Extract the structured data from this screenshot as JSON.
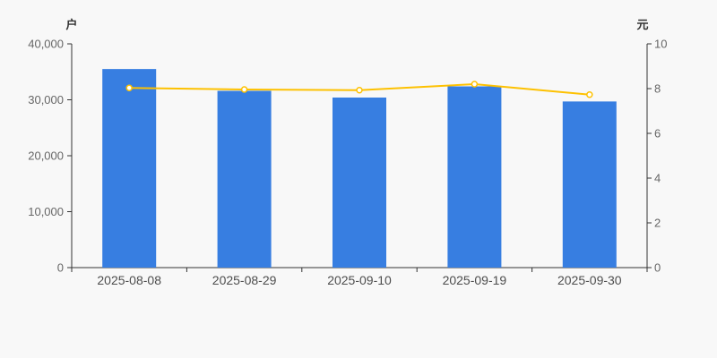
{
  "chart_data": {
    "type": "bar+line",
    "categories": [
      "2025-08-08",
      "2025-08-29",
      "2025-09-10",
      "2025-09-19",
      "2025-09-30"
    ],
    "series": [
      {
        "id": "bar-series",
        "type": "bar",
        "axis": "left",
        "values": [
          35500,
          31600,
          30400,
          32400,
          29700
        ],
        "color": "#377ee1"
      },
      {
        "id": "line-series",
        "type": "line",
        "axis": "right",
        "values": [
          8.03,
          7.96,
          7.93,
          8.2,
          7.73
        ],
        "color": "#fdc101",
        "marker": {
          "fill": "#ffffff",
          "radius": 3,
          "stroke_width": 1.5
        }
      }
    ],
    "left_axis": {
      "name": "户",
      "min": 0,
      "max": 40000,
      "ticks": [
        0,
        10000,
        20000,
        30000,
        40000
      ],
      "tick_labels": [
        "0",
        "10,000",
        "20,000",
        "30,000",
        "40,000"
      ]
    },
    "right_axis": {
      "name": "元",
      "min": 0,
      "max": 10,
      "ticks": [
        0,
        2,
        4,
        6,
        8,
        10
      ],
      "tick_labels": [
        "0",
        "2",
        "4",
        "6",
        "8",
        "10"
      ]
    },
    "grid": false,
    "legend": null,
    "styles": {
      "background": "#f8f8f8",
      "axis_color": "#333333",
      "y_label_color": "#666666",
      "x_label_color": "#4d4d4d"
    }
  }
}
